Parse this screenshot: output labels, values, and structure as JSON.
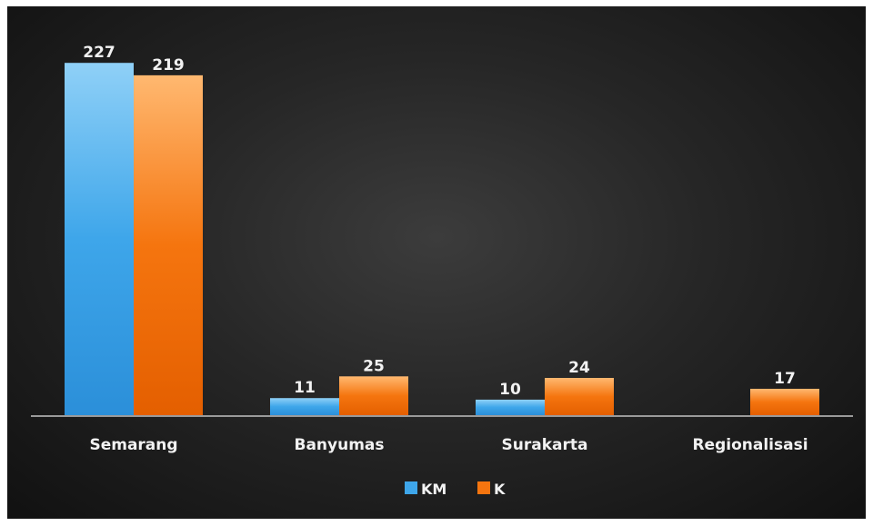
{
  "chart_data": {
    "type": "bar",
    "title": "",
    "xlabel": "",
    "ylabel": "",
    "categories": [
      "Semarang",
      "Banyumas",
      "Surakarta",
      "Regionalisasi"
    ],
    "series": [
      {
        "name": "KM",
        "color": "#3ea6ea",
        "values": [
          227,
          11,
          10,
          null
        ]
      },
      {
        "name": "K",
        "color": "#f5750f",
        "values": [
          219,
          25,
          24,
          17
        ]
      }
    ],
    "ylim": [
      0,
      240
    ],
    "grid": false,
    "legend": "bottom",
    "data_labels": true
  }
}
